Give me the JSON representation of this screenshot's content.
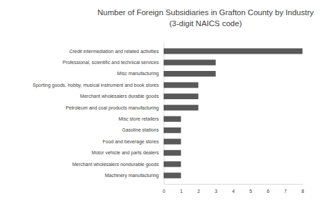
{
  "chart_data": {
    "type": "bar",
    "orientation": "horizontal",
    "title": "Number of Foreign Subsidiaries in Grafton County by Industry",
    "subtitle": "(3-digit NAICS code)",
    "categories": [
      "Credit intermediation and related activities",
      "Professional, scientific and technical services",
      "Misc manufacturing",
      "Sporting goods, hobby, musical instrument and book stores",
      "Merchant wholesalers durable goods",
      "Petroleum and coal products manufacturing",
      "Misc store retailers",
      "Gasoline stations",
      "Food and beverage stores",
      "Motor vehicle and parts dealers",
      "Merchant wholesalers nondurable goods",
      "Machinery manufacturing"
    ],
    "values": [
      8,
      3,
      3,
      2,
      2,
      2,
      1,
      1,
      1,
      1,
      1,
      1
    ],
    "color": "#595959",
    "xlim": [
      0,
      8
    ],
    "xticks": [
      0,
      1,
      2,
      3,
      4,
      5,
      6,
      7,
      8
    ],
    "grid": false
  }
}
